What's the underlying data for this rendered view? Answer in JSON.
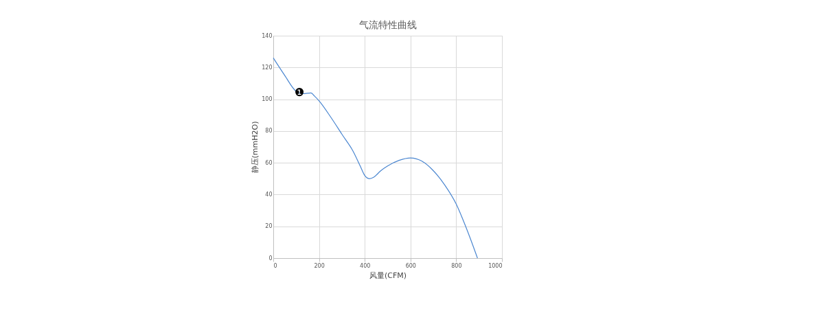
{
  "chart_data": {
    "type": "line",
    "title": "气流特性曲线",
    "xlabel": "风量(CFM)",
    "ylabel": "静压(mmH2O)",
    "x": [
      0,
      50,
      100,
      130,
      165,
      180,
      200,
      250,
      300,
      350,
      380,
      400,
      420,
      440,
      470,
      500,
      550,
      600,
      650,
      700,
      750,
      800,
      830,
      860,
      893
    ],
    "series": [
      {
        "color": "#4a86d0",
        "values": [
          126,
          115,
          105,
          103.5,
          104,
          102,
          99,
          89,
          78,
          67,
          58,
          52,
          50,
          51,
          55,
          58,
          61.5,
          63,
          61,
          55,
          46,
          34,
          24,
          13,
          0
        ]
      }
    ],
    "xlim": [
      0,
      1000
    ],
    "xticks": [
      0,
      200,
      400,
      600,
      800,
      1000
    ],
    "ylim": [
      0,
      140
    ],
    "yticks": [
      0,
      20,
      40,
      60,
      80,
      100,
      120,
      140
    ],
    "grid": true,
    "marker": "none",
    "line_style": "solid",
    "annotations": [
      {
        "text": "❶",
        "x": 115,
        "y": 104
      }
    ]
  }
}
